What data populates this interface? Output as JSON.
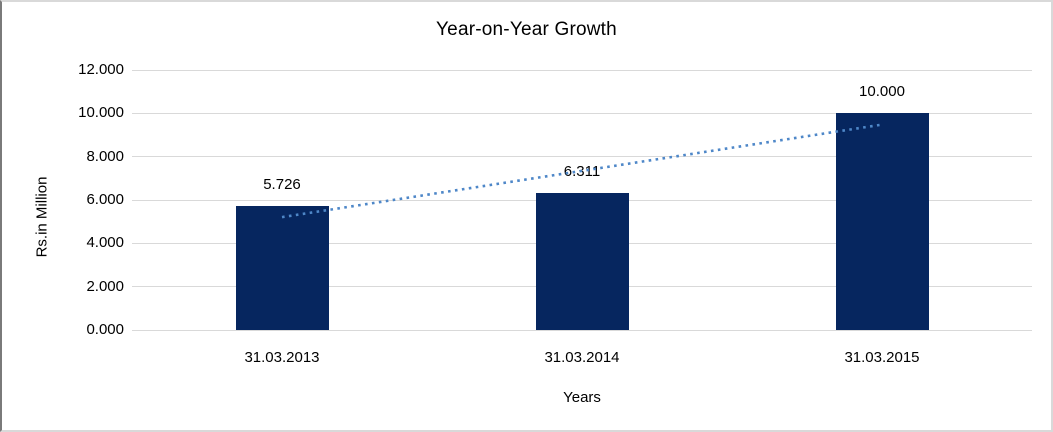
{
  "figure": {
    "background": "#ffffff",
    "frame_border_color": "#d9d9d9",
    "frame_border_left_color": "#7a7a7a"
  },
  "chart_data": {
    "type": "bar",
    "title": "Year-on-Year Growth",
    "xlabel": "Years",
    "ylabel": "Rs.in Million",
    "categories": [
      "31.03.2013",
      "31.03.2014",
      "31.03.2015"
    ],
    "values": [
      5.726,
      6.311,
      10.0
    ],
    "data_labels": [
      "5.726",
      "6.311",
      "10.000"
    ],
    "ylim": [
      0,
      12
    ],
    "ytick_step": 2,
    "ytick_labels": [
      "0.000",
      "2.000",
      "4.000",
      "6.000",
      "8.000",
      "10.000",
      "12.000"
    ],
    "grid": true,
    "legend": false,
    "bar_color": "#06265f",
    "gridline_color": "#d9d9d9",
    "text_color": "#000000",
    "trendline": {
      "type": "linear",
      "style": "dotted",
      "color": "#4e87c8",
      "start_value": 5.21,
      "end_value": 9.48
    }
  }
}
